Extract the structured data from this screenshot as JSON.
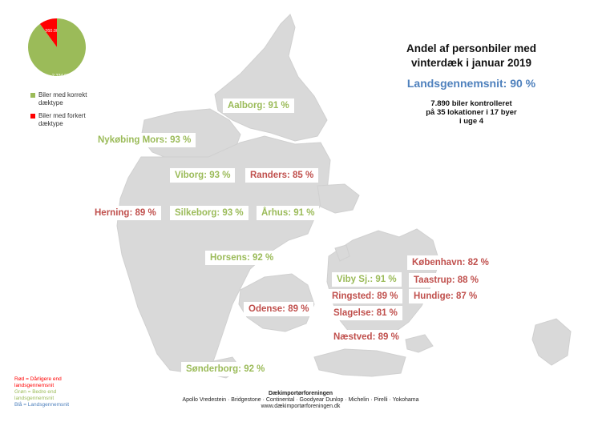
{
  "title": "Andel af personbiler med vinterdæk i januar 2019",
  "national_average": "Landsgennemsnit: 90 %",
  "stats": [
    "7.890 biler kontrolleret",
    "på 35 lokationer i 17 byer",
    "i uge 4"
  ],
  "pie": {
    "slices": [
      {
        "label": "2.334.000",
        "value": 2334000,
        "color": "#9bbb59"
      },
      {
        "label": "260.000",
        "value": 260000,
        "color": "#ff0000"
      }
    ]
  },
  "legend": [
    {
      "label": "Biler med korrekt dæktype",
      "color": "#9bbb59"
    },
    {
      "label": "Biler med forkert dæktype",
      "color": "#ff0000"
    }
  ],
  "cities": [
    {
      "name": "Aalborg: 91 %",
      "status": "good"
    },
    {
      "name": "Nykøbing Mors: 93 %",
      "status": "good"
    },
    {
      "name": "Viborg: 93 %",
      "status": "good"
    },
    {
      "name": "Randers: 85 %",
      "status": "bad"
    },
    {
      "name": "Herning: 89 %",
      "status": "bad"
    },
    {
      "name": "Silkeborg: 93 %",
      "status": "good"
    },
    {
      "name": "Århus: 91 %",
      "status": "good"
    },
    {
      "name": "Horsens: 92 %",
      "status": "good"
    },
    {
      "name": "København: 82 %",
      "status": "bad"
    },
    {
      "name": "Viby Sj.: 91 %",
      "status": "good"
    },
    {
      "name": "Taastrup: 88 %",
      "status": "bad"
    },
    {
      "name": "Ringsted: 89 %",
      "status": "bad"
    },
    {
      "name": "Hundige: 87 %",
      "status": "bad"
    },
    {
      "name": "Odense: 89 %",
      "status": "bad"
    },
    {
      "name": "Slagelse: 81 %",
      "status": "bad"
    },
    {
      "name": "Næstved: 89 %",
      "status": "bad"
    },
    {
      "name": "Sønderborg: 92 %",
      "status": "good"
    }
  ],
  "key": [
    {
      "text": "Rød = Dårligere end landsgennemsnit",
      "color": "#ff0000"
    },
    {
      "text": "Grøn = Bedre end landsgennemsnit",
      "color": "#9bbb59"
    },
    {
      "text": "Blå = Landsgennemsnit",
      "color": "#4f81bd"
    }
  ],
  "footer": {
    "org": "Dækimportørforeningen",
    "brands": "Apollo Vredestein · Bridgestone · Continental · Goodyear Dunlop · Michelin · Pirelli · Yokohama",
    "url": "www.dækimportørforeningen.dk"
  }
}
